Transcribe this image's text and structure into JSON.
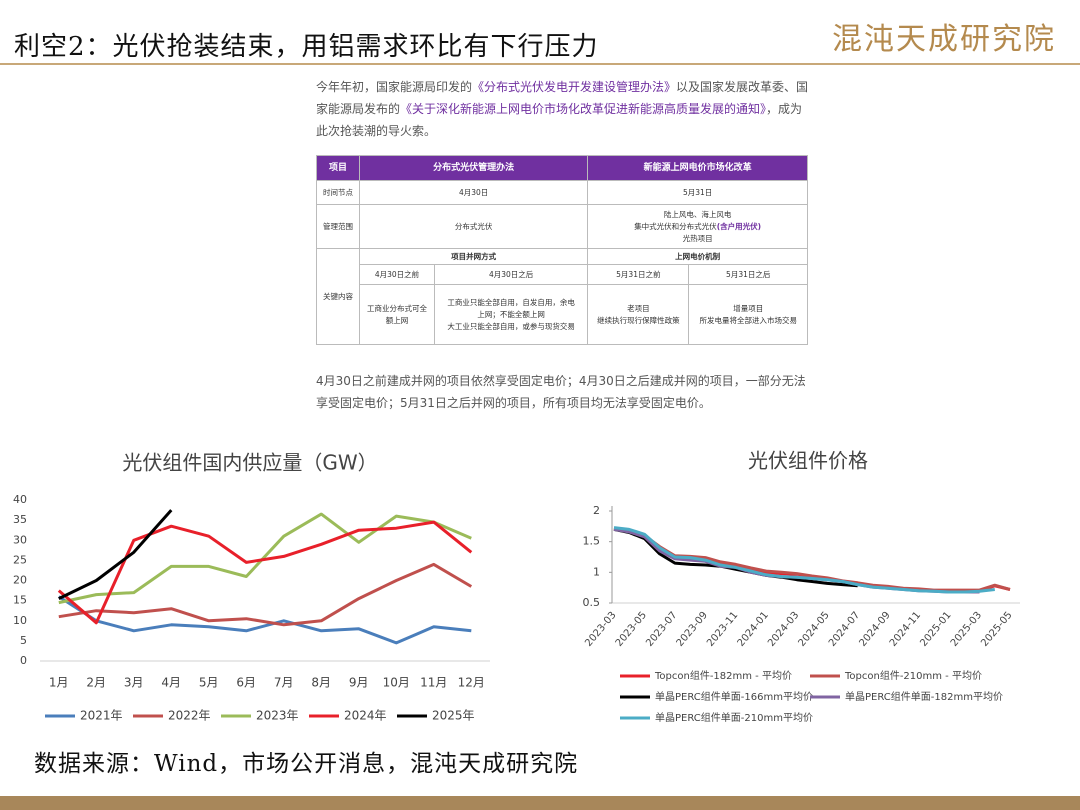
{
  "header": {
    "title": "利空2：光伏抢装结束，用铝需求环比有下行压力",
    "logo": "混沌天成研究院"
  },
  "intro": {
    "segments": [
      "今年年初，国家能源局印发的",
      "《分布式光伏发电开发建设管理办法》",
      "以及国家发展改革委、国家能源局发布的",
      "《关于深化新能源上网电价市场化改革促进新能源高质量发展的通知》",
      "，成为此次抢装潮的导火索。"
    ]
  },
  "table": {
    "header": [
      "项目",
      "分布式光伏管理办法",
      "新能源上网电价市场化改革"
    ],
    "time": {
      "label": "时间节点",
      "values": [
        "4月30日",
        "5月31日"
      ]
    },
    "scope": {
      "label": "管理范围",
      "distributed": "分布式光伏",
      "market": [
        "陆上风电、海上风电",
        "集中式光伏和分布式光伏",
        "(含户用光伏)",
        "光热项目"
      ]
    },
    "key": {
      "label": "关键内容",
      "groups": [
        "项目并网方式",
        "上网电价机制"
      ],
      "periods": [
        "4月30日之前",
        "4月30日之后",
        "5月31日之前",
        "5月31日之后"
      ],
      "contents": [
        [
          "工商业分布式可全",
          "额上网"
        ],
        [
          "工商业只能全部自用，自发自用，余电",
          "上网；不能全额上网",
          "大工业只能全部自用，或参与现货交易"
        ],
        [
          "老项目",
          "继续执行现行保障性政策"
        ],
        [
          "增量项目",
          "所发电量将全部进入市场交易"
        ]
      ]
    }
  },
  "note": "4月30日之前建成并网的项目依然享受固定电价；4月30日之后建成并网的项目，一部分无法享受固定电价；5月31日之后并网的项目，所有项目均无法享受固定电价。",
  "chart_data": [
    {
      "type": "line",
      "title": "光伏组件国内供应量（GW）",
      "categories": [
        "1月",
        "2月",
        "3月",
        "4月",
        "5月",
        "6月",
        "7月",
        "8月",
        "9月",
        "10月",
        "11月",
        "12月"
      ],
      "ylim": [
        0,
        40
      ],
      "yticks": [
        0,
        5,
        10,
        15,
        20,
        25,
        30,
        35,
        40
      ],
      "series": [
        {
          "name": "2021年",
          "color": "#4a7ebb",
          "values": [
            16,
            10,
            7.5,
            9,
            8.5,
            7.5,
            10,
            7.5,
            8,
            4.5,
            8.5,
            7.5
          ]
        },
        {
          "name": "2022年",
          "color": "#c0504d",
          "values": [
            11,
            12.5,
            12,
            13,
            10,
            10.5,
            9,
            10,
            15.5,
            20,
            24,
            18.5
          ]
        },
        {
          "name": "2023年",
          "color": "#9bbb59",
          "values": [
            14.5,
            16.5,
            17,
            23.5,
            23.5,
            21,
            31,
            36.5,
            29.5,
            36,
            34.5,
            30.5
          ]
        },
        {
          "name": "2024年",
          "color": "#e8202a",
          "values": [
            17.5,
            9.5,
            30,
            33.5,
            31,
            24.5,
            26,
            29,
            32.5,
            33,
            34.5,
            27
          ]
        },
        {
          "name": "2025年",
          "color": "#000000",
          "values": [
            15.5,
            20,
            27,
            37.5,
            null,
            null,
            null,
            null,
            null,
            null,
            null,
            null
          ]
        }
      ]
    },
    {
      "type": "line",
      "title": "光伏组件价格",
      "categories": [
        "2023-03",
        null,
        "2023-05",
        null,
        "2023-07",
        null,
        "2023-09",
        null,
        "2023-11",
        null,
        "2024-01",
        null,
        "2024-03",
        null,
        "2024-05",
        null,
        "2024-07",
        null,
        "2024-09",
        null,
        "2024-11",
        null,
        "2025-01",
        null,
        "2025-03",
        null,
        "2025-05"
      ],
      "ylim": [
        0.5,
        2
      ],
      "yticks": [
        0.5,
        1,
        1.5,
        2
      ],
      "series": [
        {
          "name": "Topcon组件-182mm - 平均价",
          "color": "#e8202a",
          "values": [
            1.72,
            1.68,
            1.6,
            1.4,
            1.25,
            1.25,
            1.22,
            1.15,
            1.12,
            1.05,
            1.0,
            0.98,
            0.97,
            0.93,
            0.9,
            0.85,
            0.82,
            0.78,
            0.76,
            0.73,
            0.72,
            0.7,
            0.7,
            0.7,
            0.7,
            0.78,
            0.72
          ]
        },
        {
          "name": "Topcon组件-210mm - 平均价",
          "color": "#c0504d",
          "values": [
            1.72,
            1.68,
            1.6,
            1.42,
            1.27,
            1.26,
            1.24,
            1.17,
            1.13,
            1.07,
            1.02,
            1.0,
            0.98,
            0.94,
            0.91,
            0.86,
            0.83,
            0.79,
            0.77,
            0.74,
            0.73,
            0.71,
            0.71,
            0.71,
            0.71,
            0.79,
            0.72
          ]
        },
        {
          "name": "单晶PERC组件单面-166mm平均价",
          "color": "#000000",
          "values": [
            1.7,
            1.65,
            1.55,
            1.3,
            1.15,
            1.13,
            1.12,
            1.1,
            1.05,
            1.0,
            0.95,
            0.92,
            0.88,
            0.85,
            0.82,
            0.8,
            0.78,
            null,
            null,
            null,
            null,
            null,
            null,
            null,
            null,
            null,
            null
          ]
        },
        {
          "name": "单晶PERC组件单面-182mm平均价",
          "color": "#8064a2",
          "values": [
            1.7,
            1.66,
            1.58,
            1.35,
            1.22,
            1.2,
            1.18,
            1.1,
            1.08,
            1.0,
            0.95,
            0.93,
            0.92,
            0.9,
            0.88,
            0.85,
            0.8,
            0.76,
            0.74,
            0.72,
            0.7,
            0.69,
            0.68,
            0.68,
            0.68,
            null,
            null
          ]
        },
        {
          "name": "单晶PERC组件单面-210mm平均价",
          "color": "#4bacc6",
          "values": [
            1.73,
            1.7,
            1.62,
            1.4,
            1.25,
            1.24,
            1.2,
            1.12,
            1.08,
            1.02,
            0.96,
            0.93,
            0.92,
            0.9,
            0.88,
            0.85,
            0.8,
            0.76,
            0.74,
            0.72,
            0.7,
            0.69,
            0.68,
            0.68,
            0.69,
            0.72,
            null
          ]
        }
      ]
    }
  ],
  "source": "数据来源：Wind，市场公开消息，混沌天成研究院"
}
